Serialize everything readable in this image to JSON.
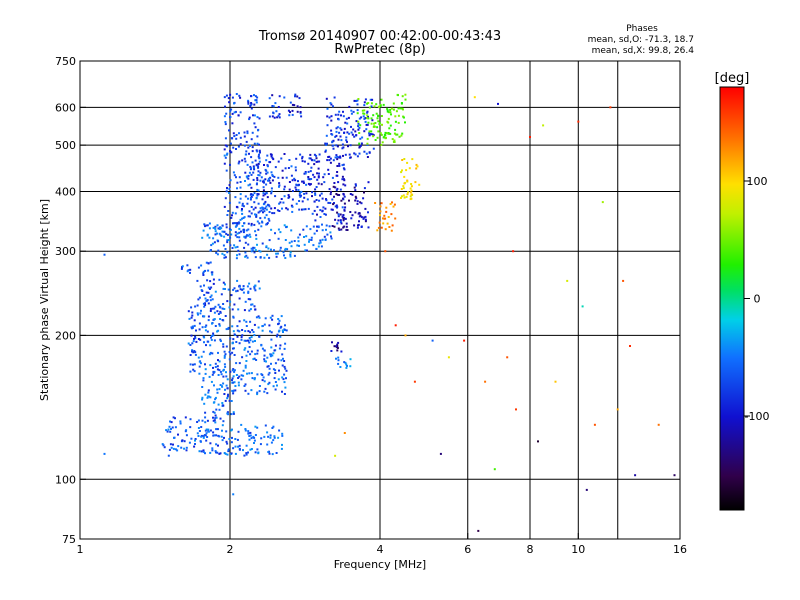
{
  "chart_data": {
    "type": "scatter",
    "title": "Tromsø 20140907 00:42:00-00:43:43",
    "subtitle": "RwPretec (8p)",
    "xlabel": "Frequency [MHz]",
    "ylabel": "Stationary phase Virtual Height [km]",
    "x_scale": "log",
    "y_scale": "log",
    "xlim": [
      1,
      16
    ],
    "ylim": [
      75,
      750
    ],
    "x_ticks": [
      1,
      2,
      4,
      6,
      8,
      10,
      16
    ],
    "x_grid": [
      2,
      4,
      6,
      8,
      10,
      12
    ],
    "y_ticks": [
      75,
      100,
      200,
      300,
      400,
      500,
      600,
      750
    ],
    "y_grid": [
      100,
      200,
      300,
      400,
      500,
      600
    ],
    "grid": true,
    "phase_stats": {
      "heading": "Phases",
      "line_o": "mean, sd,O: -71.3, 18.7",
      "line_x": "mean, sd,X:  99.8, 26.4"
    },
    "colorbar": {
      "label": "[deg]",
      "range": [
        -180,
        180
      ],
      "ticks": [
        100,
        0,
        -100
      ]
    },
    "series": [
      {
        "clusters": [
          {
            "x": [
              1.45,
              1.95
            ],
            "y": [
              112,
              135
            ],
            "phase": -95
          },
          {
            "x": [
              1.75,
              2.05
            ],
            "y": [
              135,
              170
            ],
            "phase": -95
          },
          {
            "x": [
              1.95,
              2.55
            ],
            "y": [
              112,
              130
            ],
            "phase": -92
          },
          {
            "x": [
              1.65,
              2.0
            ],
            "y": [
              165,
              230
            ],
            "phase": -97
          },
          {
            "x": [
              2.0,
              2.6
            ],
            "y": [
              150,
              220
            ],
            "phase": -95
          },
          {
            "x": [
              1.72,
              2.3
            ],
            "y": [
              225,
              262
            ],
            "phase": -97
          },
          {
            "x": [
              1.6,
              1.85
            ],
            "y": [
              265,
              285
            ],
            "phase": -95
          },
          {
            "x": [
              1.8,
              2.7
            ],
            "y": [
              290,
              340
            ],
            "phase": -90
          },
          {
            "x": [
              2.7,
              3.2
            ],
            "y": [
              300,
              340
            ],
            "phase": -92
          },
          {
            "x": [
              1.75,
              2.2
            ],
            "y": [
              320,
              345
            ],
            "phase": -92
          },
          {
            "x": [
              1.95,
              2.4
            ],
            "y": [
              340,
              480
            ],
            "phase": -100
          },
          {
            "x": [
              1.95,
              2.3
            ],
            "y": [
              480,
              640
            ],
            "phase": -105
          },
          {
            "x": [
              2.2,
              2.9
            ],
            "y": [
              360,
              480
            ],
            "phase": -108
          },
          {
            "x": [
              2.4,
              2.8
            ],
            "y": [
              570,
              640
            ],
            "phase": -110
          },
          {
            "x": [
              2.9,
              3.4
            ],
            "y": [
              340,
              480
            ],
            "phase": -112
          },
          {
            "x": [
              3.2,
              3.8
            ],
            "y": [
              330,
              420
            ],
            "phase": -125
          },
          {
            "x": [
              3.1,
              3.9
            ],
            "y": [
              470,
              630
            ],
            "phase": -108
          },
          {
            "x": [
              3.9,
              4.3
            ],
            "y": [
              330,
              380
            ],
            "phase": 130
          },
          {
            "x": [
              4.4,
              4.8
            ],
            "y": [
              380,
              470
            ],
            "phase": 98
          },
          {
            "x": [
              3.6,
              4.5
            ],
            "y": [
              500,
              640
            ],
            "phase": 35
          },
          {
            "x": [
              3.1,
              3.35
            ],
            "y": [
              185,
              195
            ],
            "phase": -130
          },
          {
            "x": [
              3.2,
              3.5
            ],
            "y": [
              170,
              180
            ],
            "phase": -85
          }
        ],
        "points": [
          {
            "x": 1.12,
            "y": 113,
            "phase": -88
          },
          {
            "x": 1.12,
            "y": 295,
            "phase": -95
          },
          {
            "x": 2.03,
            "y": 93,
            "phase": -85
          },
          {
            "x": 3.4,
            "y": 125,
            "phase": 130
          },
          {
            "x": 3.25,
            "y": 112,
            "phase": 80
          },
          {
            "x": 4.1,
            "y": 300,
            "phase": 150
          },
          {
            "x": 4.3,
            "y": 210,
            "phase": 170
          },
          {
            "x": 4.5,
            "y": 200,
            "phase": 120
          },
          {
            "x": 4.7,
            "y": 160,
            "phase": 160
          },
          {
            "x": 5.1,
            "y": 195,
            "phase": -95
          },
          {
            "x": 5.3,
            "y": 113,
            "phase": -140
          },
          {
            "x": 5.5,
            "y": 180,
            "phase": 90
          },
          {
            "x": 5.9,
            "y": 195,
            "phase": 170
          },
          {
            "x": 6.2,
            "y": 630,
            "phase": 100
          },
          {
            "x": 6.3,
            "y": 78,
            "phase": -150
          },
          {
            "x": 6.5,
            "y": 160,
            "phase": 140
          },
          {
            "x": 6.8,
            "y": 105,
            "phase": 30
          },
          {
            "x": 6.9,
            "y": 610,
            "phase": -120
          },
          {
            "x": 7.2,
            "y": 180,
            "phase": 150
          },
          {
            "x": 7.4,
            "y": 300,
            "phase": 170
          },
          {
            "x": 7.5,
            "y": 140,
            "phase": 160
          },
          {
            "x": 8.0,
            "y": 520,
            "phase": 170
          },
          {
            "x": 8.3,
            "y": 120,
            "phase": -160
          },
          {
            "x": 8.5,
            "y": 550,
            "phase": 70
          },
          {
            "x": 9.0,
            "y": 160,
            "phase": 110
          },
          {
            "x": 9.5,
            "y": 260,
            "phase": 80
          },
          {
            "x": 10.0,
            "y": 560,
            "phase": 165
          },
          {
            "x": 10.2,
            "y": 230,
            "phase": -40
          },
          {
            "x": 10.4,
            "y": 95,
            "phase": -140
          },
          {
            "x": 10.8,
            "y": 130,
            "phase": 150
          },
          {
            "x": 11.2,
            "y": 380,
            "phase": 60
          },
          {
            "x": 11.6,
            "y": 600,
            "phase": 160
          },
          {
            "x": 12.0,
            "y": 140,
            "phase": 120
          },
          {
            "x": 12.3,
            "y": 260,
            "phase": 150
          },
          {
            "x": 12.7,
            "y": 190,
            "phase": 165
          },
          {
            "x": 13.0,
            "y": 102,
            "phase": -130
          },
          {
            "x": 14.5,
            "y": 130,
            "phase": 140
          },
          {
            "x": 15.6,
            "y": 102,
            "phase": -145
          }
        ]
      }
    ]
  }
}
